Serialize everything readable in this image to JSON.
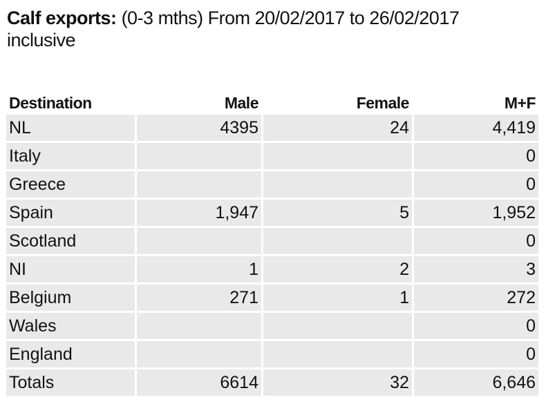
{
  "header": {
    "title_bold": "Calf exports:",
    "title_rest": "(0-3 mths) From 20/02/2017 to 26/02/2017 inclusive"
  },
  "table": {
    "columns": [
      "Destination",
      "Male",
      "Female",
      "M+F"
    ],
    "rows": [
      [
        "NL",
        "4395",
        "24",
        "4,419"
      ],
      [
        "Italy",
        null,
        null,
        "0"
      ],
      [
        "Greece",
        null,
        null,
        "0"
      ],
      [
        "Spain",
        "1,947",
        "5",
        "1,952"
      ],
      [
        "Scotland",
        null,
        null,
        "0"
      ],
      [
        "NI",
        "1",
        "2",
        "3"
      ],
      [
        "Belgium",
        "271",
        "1",
        "272"
      ],
      [
        "Wales",
        null,
        null,
        "0"
      ],
      [
        "England",
        null,
        null,
        "0"
      ],
      [
        "Totals",
        "6614",
        "32",
        "6,646"
      ]
    ]
  }
}
